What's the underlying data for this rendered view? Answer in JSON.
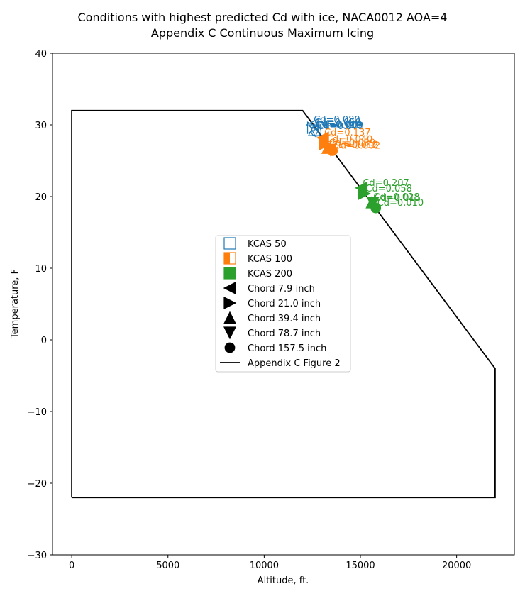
{
  "chart_data": {
    "type": "scatter",
    "title": "Conditions with highest predicted Cd with ice, NACA0012 AOA=4",
    "subtitle": "Appendix C Continuous Maximum Icing",
    "xlabel": "Altitude, ft.",
    "ylabel": "Temperature, F",
    "xlim": [
      -1000,
      23000
    ],
    "ylim": [
      -30,
      40
    ],
    "xticks": [
      0,
      5000,
      10000,
      15000,
      20000
    ],
    "yticks": [
      -30,
      -20,
      -10,
      0,
      10,
      20,
      30,
      40
    ],
    "grid": false,
    "legend_position": "center",
    "envelope": {
      "name": "Appendix C Figure 2",
      "color": "#000000",
      "points": [
        [
          0,
          -22
        ],
        [
          0,
          32
        ],
        [
          12000,
          32
        ],
        [
          22000,
          -4
        ],
        [
          22000,
          -22
        ],
        [
          0,
          -22
        ]
      ]
    },
    "speed_groups": [
      {
        "name": "KCAS 50",
        "color": "#1f77b4",
        "fill": "none"
      },
      {
        "name": "KCAS 100",
        "color": "#ff7f0e",
        "fill": "left"
      },
      {
        "name": "KCAS 200",
        "color": "#2ca02c",
        "fill": "full"
      }
    ],
    "chord_markers": [
      {
        "name": "Chord 7.9 inch",
        "marker": "triangle-left"
      },
      {
        "name": "Chord 21.0 inch",
        "marker": "triangle-right"
      },
      {
        "name": "Chord 39.4 inch",
        "marker": "triangle-up"
      },
      {
        "name": "Chord 78.7 inch",
        "marker": "triangle-down"
      },
      {
        "name": "Chord 157.5 inch",
        "marker": "circle"
      }
    ],
    "points": [
      {
        "group": 0,
        "chord": 0,
        "x": 12500,
        "y": 30.0,
        "label": "Cd=0.080"
      },
      {
        "group": 0,
        "chord": 1,
        "x": 12550,
        "y": 29.6,
        "label": "Cd=0.059"
      },
      {
        "group": 0,
        "chord": 2,
        "x": 12600,
        "y": 29.3,
        "label": "Cd=0.019"
      },
      {
        "group": 0,
        "chord": 3,
        "x": 12650,
        "y": 29.2,
        "label": "Cd=0.009"
      },
      {
        "group": 0,
        "chord": 4,
        "x": 12700,
        "y": 29.1,
        "label": "Cd=0.003"
      },
      {
        "group": 1,
        "chord": 0,
        "x": 13050,
        "y": 28.2,
        "label": "Cd=0.137"
      },
      {
        "group": 1,
        "chord": 1,
        "x": 13150,
        "y": 27.3,
        "label": "Cd=0.040"
      },
      {
        "group": 1,
        "chord": 2,
        "x": 13300,
        "y": 26.8,
        "label": "Cd=0.039"
      },
      {
        "group": 1,
        "chord": 3,
        "x": 13450,
        "y": 26.5,
        "label": "Cd=0.012"
      },
      {
        "group": 1,
        "chord": 4,
        "x": 13550,
        "y": 26.4,
        "label": "Cd=0.002"
      },
      {
        "group": 2,
        "chord": 0,
        "x": 15050,
        "y": 21.2,
        "label": "Cd=0.207"
      },
      {
        "group": 2,
        "chord": 1,
        "x": 15200,
        "y": 20.4,
        "label": "Cd=0.058"
      },
      {
        "group": 2,
        "chord": 2,
        "x": 15600,
        "y": 19.2,
        "label": "Cd=0.028"
      },
      {
        "group": 2,
        "chord": 3,
        "x": 15650,
        "y": 19.1,
        "label": "Cd=0.015"
      },
      {
        "group": 2,
        "chord": 4,
        "x": 15800,
        "y": 18.4,
        "label": "Cd=0.010"
      }
    ]
  }
}
